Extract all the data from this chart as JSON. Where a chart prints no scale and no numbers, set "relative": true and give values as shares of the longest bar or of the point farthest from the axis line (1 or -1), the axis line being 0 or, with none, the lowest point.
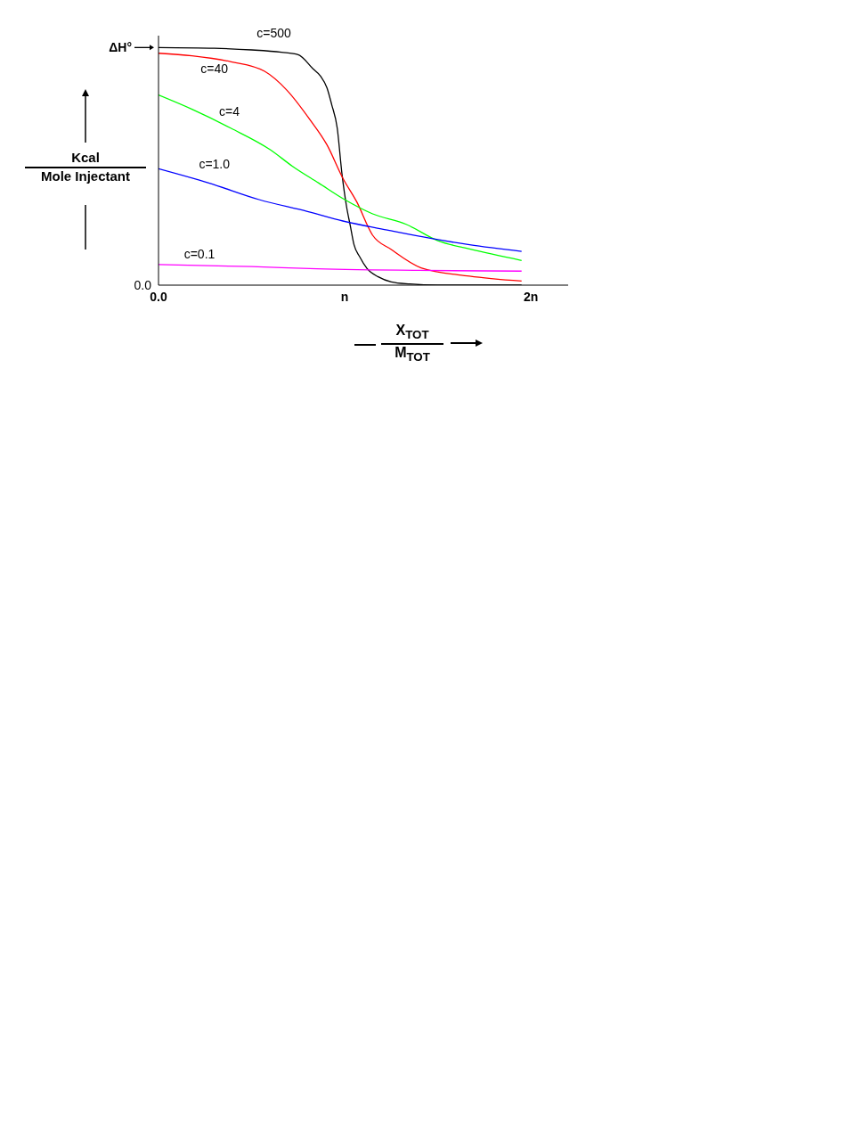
{
  "chart_data": {
    "type": "line",
    "relative": true,
    "xlabel": "X$_{TOT}$ M$_{TOT}$",
    "ylabel": "Kcal Mole Injectant",
    "xlim": [
      0,
      2.2
    ],
    "xticks": [
      {
        "value": 0,
        "label": "0.0"
      },
      {
        "value": 1,
        "label": "n"
      },
      {
        "value": 2,
        "label": "2n"
      }
    ],
    "grid": false,
    "legend": false,
    "marker": "none",
    "line_style": "solid",
    "annotations": [
      "ΔH°",
      "0.0"
    ],
    "series": [
      {
        "name": "c=500",
        "color": "#000000",
        "x": [
          0,
          0.3,
          0.5,
          0.66,
          0.75,
          0.83,
          0.87,
          0.905,
          0.93,
          0.96,
          0.985,
          1.01,
          1.03,
          1.05,
          1.08,
          1.12,
          1.18,
          1.25,
          1.35,
          1.5,
          1.95
        ],
        "values": [
          1.0,
          0.997,
          0.99,
          0.98,
          0.97,
          0.91,
          0.88,
          0.83,
          0.76,
          0.66,
          0.47,
          0.33,
          0.25,
          0.17,
          0.12,
          0.07,
          0.035,
          0.014,
          0.005,
          0,
          0
        ]
      },
      {
        "name": "c=40",
        "color": "#ff0000",
        "x": [
          0,
          0.18,
          0.39,
          0.57,
          0.69,
          0.81,
          0.905,
          0.99,
          1.065,
          1.15,
          1.25,
          1.41,
          1.67,
          1.95
        ],
        "values": [
          0.976,
          0.965,
          0.94,
          0.9,
          0.82,
          0.7,
          0.59,
          0.45,
          0.35,
          0.21,
          0.15,
          0.073,
          0.038,
          0.017
        ]
      },
      {
        "name": "c=4",
        "color": "#00ff00",
        "x": [
          0,
          0.18,
          0.39,
          0.6,
          0.72,
          0.86,
          1.0,
          1.15,
          1.33,
          1.5,
          1.67,
          1.95
        ],
        "values": [
          0.8,
          0.74,
          0.66,
          0.57,
          0.5,
          0.43,
          0.36,
          0.3,
          0.256,
          0.187,
          0.152,
          0.104
        ]
      },
      {
        "name": "c=1.0",
        "color": "#0000ff",
        "x": [
          0,
          0.27,
          0.54,
          0.8,
          0.99,
          1.24,
          1.46,
          1.67,
          1.95
        ],
        "values": [
          0.49,
          0.43,
          0.36,
          0.31,
          0.27,
          0.23,
          0.197,
          0.17,
          0.142
        ]
      },
      {
        "name": "c=0.1",
        "color": "#ff00ff",
        "x": [
          0,
          0.5,
          0.85,
          1.4,
          1.95
        ],
        "values": [
          0.087,
          0.078,
          0.069,
          0.062,
          0.059
        ]
      }
    ]
  }
}
